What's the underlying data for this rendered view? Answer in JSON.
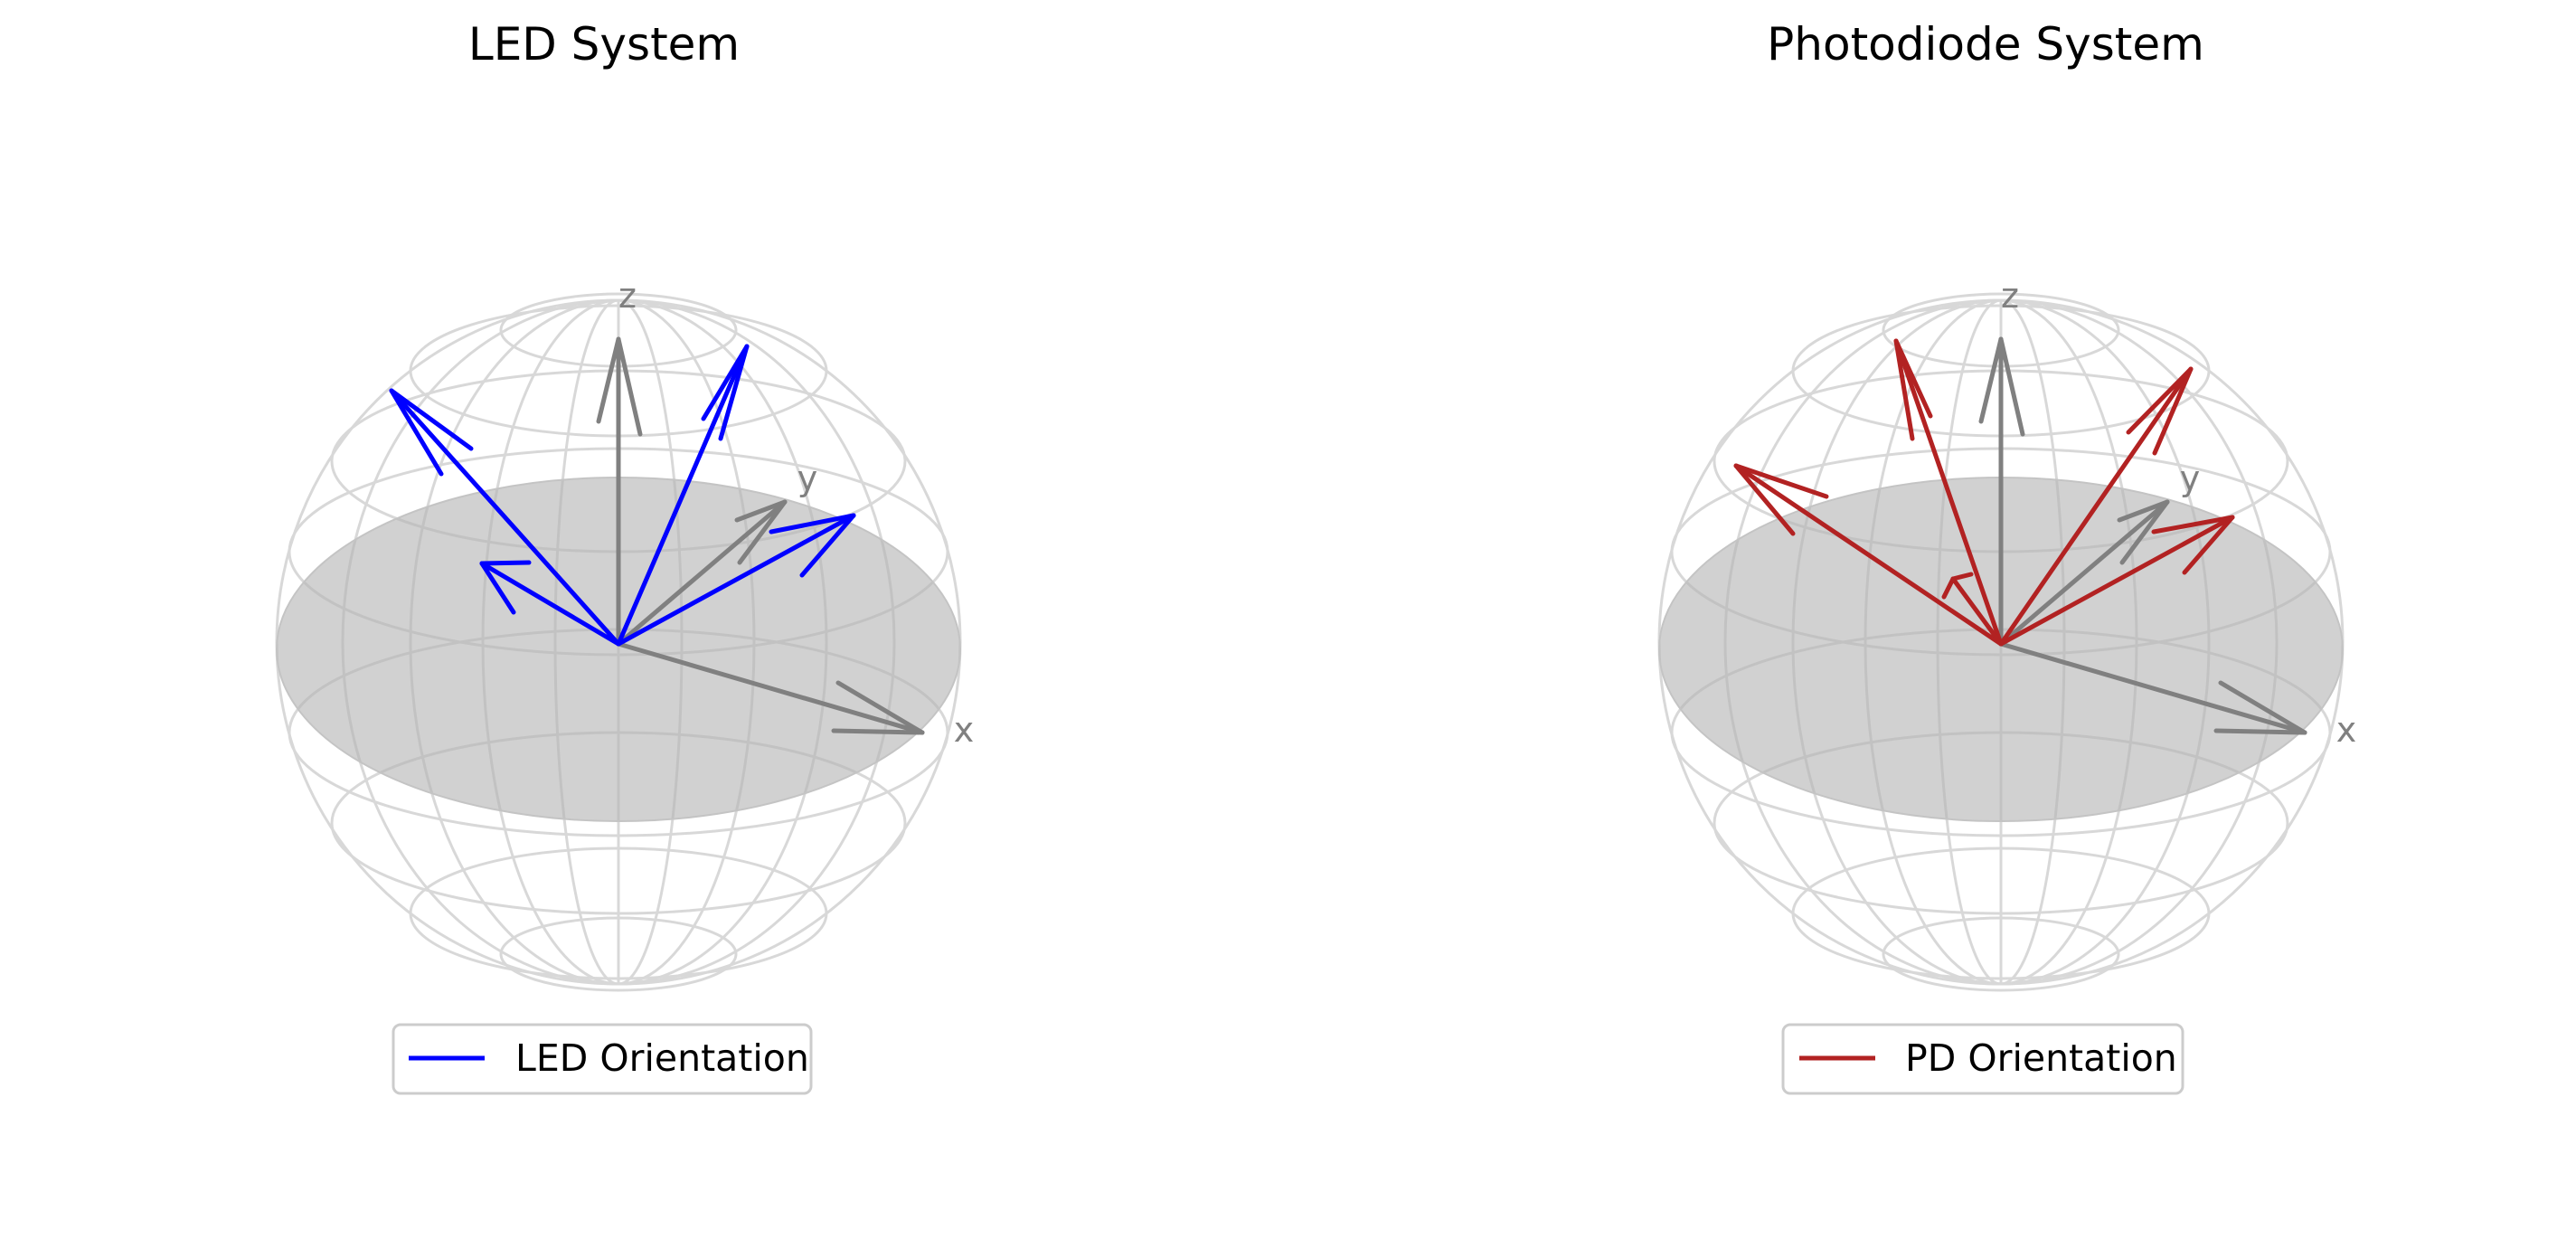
{
  "figure": {
    "panels": [
      {
        "id": "led",
        "title": "LED System",
        "legend_label": "LED Orientation",
        "arrow_color": "#0000ff",
        "axis_labels": {
          "x": "x",
          "y": "y",
          "z": "z"
        }
      },
      {
        "id": "pd",
        "title": "Photodiode System",
        "legend_label": "PD Orientation",
        "arrow_color": "#b22222",
        "axis_labels": {
          "x": "x",
          "y": "y",
          "z": "z"
        }
      }
    ]
  },
  "colors": {
    "axis_arrow": "#808080",
    "sphere_wire": "#c8c8c8",
    "equator_fill": "#b4b4b4"
  }
}
